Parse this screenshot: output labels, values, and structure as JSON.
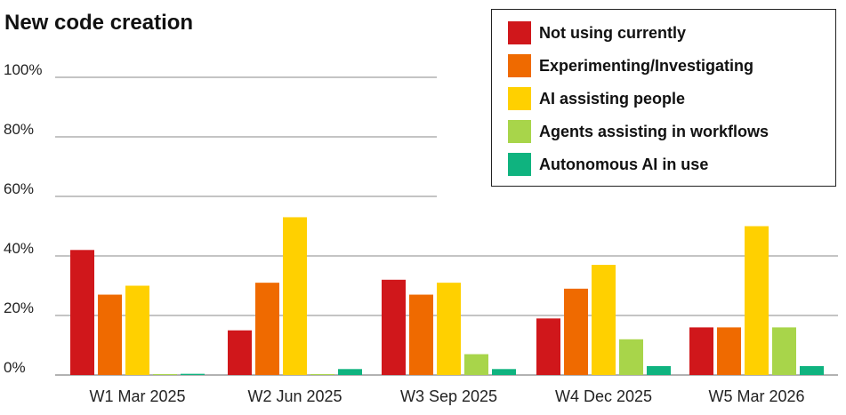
{
  "chart_data": {
    "type": "bar",
    "title": "New code creation",
    "categories": [
      "W1 Mar 2025",
      "W2 Jun 2025",
      "W3 Sep 2025",
      "W4 Dec 2025",
      "W5 Mar 2026"
    ],
    "series": [
      {
        "name": "Not using currently",
        "color": "#d0171b",
        "values": [
          42,
          15,
          32,
          19,
          16
        ]
      },
      {
        "name": "Experimenting/Investigating",
        "color": "#ef6a00",
        "values": [
          27,
          31,
          27,
          29,
          16
        ]
      },
      {
        "name": "AI assisting people",
        "color": "#ffd000",
        "values": [
          30,
          53,
          31,
          37,
          50
        ]
      },
      {
        "name": "Agents assisting in workflows",
        "color": "#a8d54a",
        "values": [
          0.3,
          0.3,
          7,
          12,
          16
        ]
      },
      {
        "name": "Autonomous AI in use",
        "color": "#0fb37f",
        "values": [
          0.4,
          2,
          2,
          3,
          3
        ]
      }
    ],
    "yticks": [
      "0%",
      "20%",
      "40%",
      "60%",
      "80%",
      "100%"
    ],
    "ylim": [
      0,
      100
    ],
    "grid": true,
    "legend_position": "top-right"
  }
}
